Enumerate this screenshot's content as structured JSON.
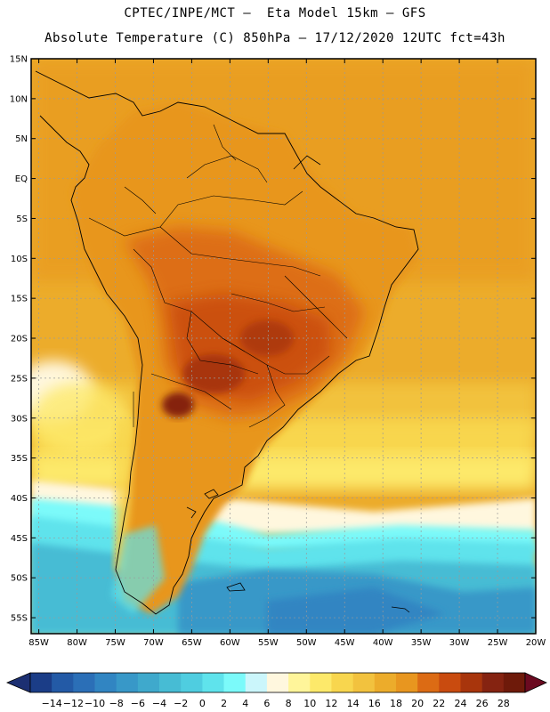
{
  "header": {
    "line1": "CPTEC/INPE/MCT –  Eta Model 15km – GFS",
    "line2": "Absolute Temperature (C) 850hPa – 17/12/2020 12UTC fct=43h"
  },
  "map": {
    "lat_labels": [
      "15N",
      "10N",
      "5N",
      "EQ",
      "5S",
      "10S",
      "15S",
      "20S",
      "25S",
      "30S",
      "35S",
      "40S",
      "45S",
      "50S",
      "55S"
    ],
    "lon_labels": [
      "85W",
      "80W",
      "75W",
      "70W",
      "65W",
      "60W",
      "55W",
      "50W",
      "45W",
      "40W",
      "35W",
      "30W",
      "25W",
      "20W"
    ],
    "lat_range": [
      15,
      -57
    ],
    "lon_range": [
      -86,
      -20
    ]
  },
  "colorbar": {
    "labels": [
      "-14",
      "-12",
      "-10",
      "-8",
      "-6",
      "-4",
      "-2",
      "0",
      "2",
      "4",
      "6",
      "8",
      "10",
      "12",
      "14",
      "16",
      "18",
      "20",
      "22",
      "24",
      "26",
      "28"
    ],
    "colors": [
      "#1b3d87",
      "#235aa6",
      "#2b6fb7",
      "#3185c2",
      "#3898c8",
      "#3fa9cc",
      "#47bcd4",
      "#4fcde0",
      "#5fe3ec",
      "#7bfafa",
      "#cbf6fb",
      "#fff7de",
      "#fff59a",
      "#fde96a",
      "#f8d64e",
      "#f2c23e",
      "#ecac2b",
      "#e8961f",
      "#dc6b14",
      "#c94b0f",
      "#a8350c",
      "#852311",
      "#6e1a0a"
    ],
    "under_color": "#1c2f72",
    "over_color": "#6b0a20"
  }
}
